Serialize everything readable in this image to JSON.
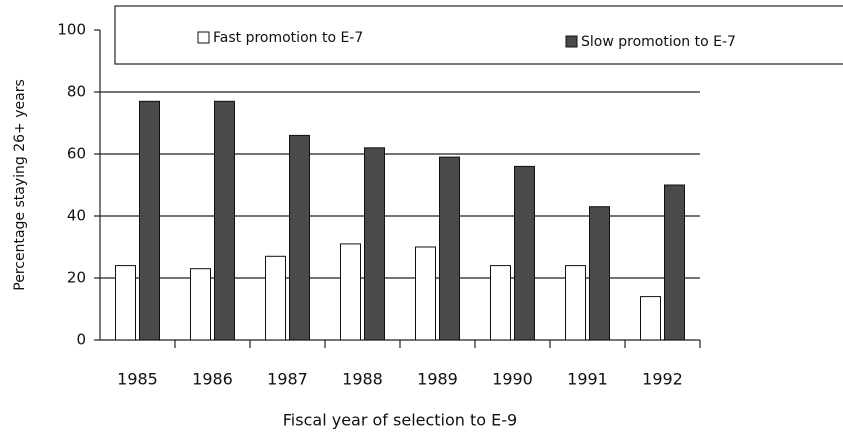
{
  "chart_data": {
    "type": "bar",
    "x_label": "Fiscal year of selection to E-9",
    "y_label": "Percentage staying 26+ years",
    "categories": [
      "1985",
      "1986",
      "1987",
      "1988",
      "1989",
      "1990",
      "1991",
      "1992"
    ],
    "series": [
      {
        "name": "Fast promotion to E-7",
        "color": "#ffffff",
        "values": [
          24,
          23,
          27,
          31,
          30,
          24,
          24,
          14
        ]
      },
      {
        "name": "Slow promotion to E-7",
        "color": "#4a4a4a",
        "values": [
          77,
          77,
          66,
          62,
          59,
          56,
          43,
          50
        ]
      }
    ],
    "ylim": [
      0,
      100
    ],
    "yticks": [
      0,
      20,
      40,
      60,
      80,
      100
    ],
    "grid": true
  }
}
